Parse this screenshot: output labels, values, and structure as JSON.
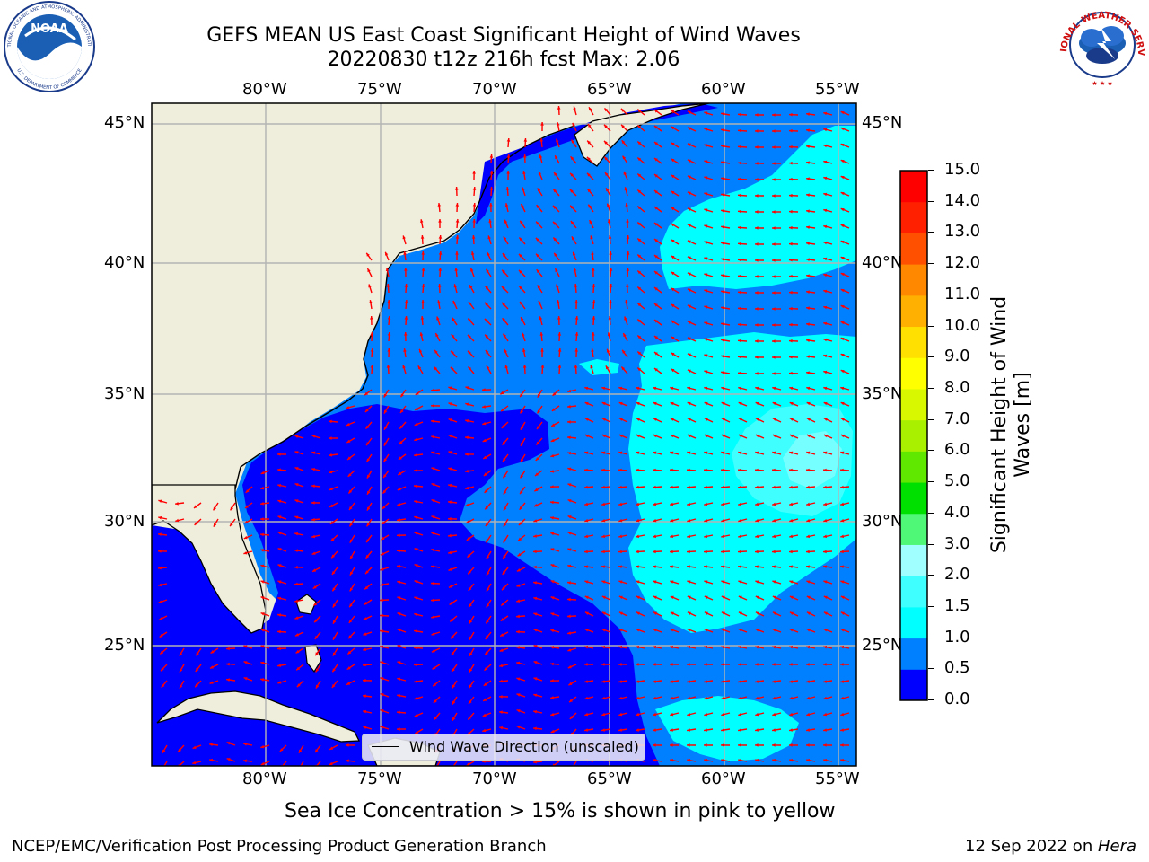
{
  "title": {
    "line1": "GEFS MEAN US East Coast Significant Height of Wind Waves",
    "line2": "20220830 t12z 216h fcst   Max: 2.06"
  },
  "map": {
    "lon_labels": [
      "80°W",
      "75°W",
      "70°W",
      "65°W",
      "60°W",
      "55°W"
    ],
    "lat_labels": [
      "45°N",
      "40°N",
      "35°N",
      "30°N",
      "25°N"
    ],
    "lon_range": [
      -85,
      -54
    ],
    "lat_range": [
      20.5,
      46
    ],
    "colors": {
      "land": "#efeedc",
      "gridline": "#b3b3b3",
      "arrow": "#ff0000",
      "coast": "#000000"
    }
  },
  "legend": {
    "label": "Wind Wave Direction (unscaled)"
  },
  "colorbar": {
    "label_line1": "Significant Height of Wind",
    "label_line2": "Waves [m]",
    "ticks": [
      "0.0",
      "0.5",
      "1.0",
      "1.5",
      "2.0",
      "3.0",
      "4.0",
      "5.0",
      "6.0",
      "7.0",
      "8.0",
      "9.0",
      "10.0",
      "11.0",
      "12.0",
      "13.0",
      "14.0",
      "15.0"
    ],
    "colors": [
      "#0000ff",
      "#0080ff",
      "#00ffff",
      "#40ffff",
      "#a0ffff",
      "#50f878",
      "#00e000",
      "#60e800",
      "#a8f000",
      "#d8f800",
      "#ffff00",
      "#ffe000",
      "#ffb000",
      "#ff8800",
      "#ff5000",
      "#ff2000",
      "#ff0000"
    ]
  },
  "footnote": "Sea Ice Concentration > 15% is shown in pink to yellow",
  "footer": {
    "left": "NCEP/EMC/Verification Post Processing Product Generation Branch",
    "right_prefix": "12 Sep 2022 on ",
    "right_machine": "Hera"
  },
  "logos": {
    "noaa": "NOAA",
    "noaa_ring_top": "NATIONAL OCEANIC AND ATMOSPHERIC ADMINISTRATION",
    "noaa_ring_bottom": "U.S. DEPARTMENT OF COMMERCE",
    "nws_ring": "NATIONAL WEATHER SERVICE"
  }
}
